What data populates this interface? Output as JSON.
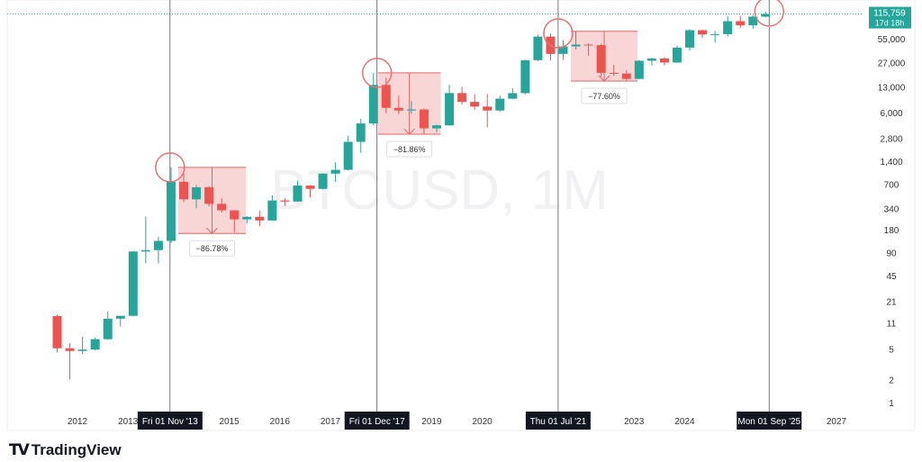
{
  "chart_data": {
    "type": "candlestick",
    "watermark": "BTCUSD, 1M",
    "y_scale": "log",
    "ylim": [
      0.85,
      140000
    ],
    "xlim": [
      2011.4,
      2027.6
    ],
    "grid": false,
    "y_ticks": [
      55000,
      27000,
      13000,
      6000,
      2800,
      1400,
      700,
      340,
      180,
      90,
      45,
      21,
      11,
      5,
      2,
      1
    ],
    "y_tick_labels": [
      "55,000",
      "27,000",
      "13,000",
      "6,000",
      "2,800",
      "1,400",
      "700",
      "340",
      "180",
      "90",
      "45",
      "21",
      "11",
      "5",
      "2",
      "1"
    ],
    "x_ticks": [
      2012,
      2013,
      2015,
      2016,
      2017,
      2019,
      2020,
      2023,
      2024,
      2027
    ],
    "x_tick_labels": [
      "2012",
      "2013",
      "2015",
      "2016",
      "2017",
      "2019",
      "2020",
      "2023",
      "2024",
      "2027"
    ],
    "last_price": {
      "value": 115759,
      "label": "115,759",
      "countdown": "17d 18h"
    },
    "colors": {
      "up": "#26a69a",
      "down": "#ef5350",
      "box": "#f7c5c5",
      "circle": "#e57373",
      "price_tag": "#26a69a"
    },
    "markers": [
      {
        "date": 2013.83,
        "label": "Fri 01 Nov '13",
        "price": 1163
      },
      {
        "date": 2017.92,
        "label": "Fri 01 Dec '17",
        "price": 19800
      },
      {
        "date": 2021.5,
        "label": "Thu 01 Jul '21",
        "price": 64900
      },
      {
        "date": 2025.67,
        "label": "Mon 01 Sep '25",
        "price": 124400
      }
    ],
    "drawdowns": [
      {
        "start": 2013.99,
        "end": 2015.33,
        "high": 1163,
        "low": 160,
        "label": "−86.78%"
      },
      {
        "start": 2017.94,
        "end": 2019.18,
        "high": 19800,
        "low": 3150,
        "label": "−81.86%"
      },
      {
        "start": 2021.75,
        "end": 2023.07,
        "high": 69000,
        "low": 15500,
        "label": "−77.60%"
      }
    ],
    "candles_columns": [
      "date",
      "open",
      "high",
      "low",
      "close"
    ],
    "candles": [
      [
        2011.6,
        13.4,
        14,
        4.5,
        5.1
      ],
      [
        2011.85,
        5.1,
        6,
        2,
        4.7
      ],
      [
        2012.1,
        4.7,
        7.2,
        4.3,
        4.9
      ],
      [
        2012.35,
        4.9,
        7,
        4.8,
        6.7
      ],
      [
        2012.6,
        6.7,
        15.4,
        6.6,
        12.4
      ],
      [
        2012.85,
        12.4,
        13.5,
        9.8,
        13.5
      ],
      [
        2013.1,
        13.5,
        95,
        13.3,
        93
      ],
      [
        2013.35,
        93,
        266,
        65,
        97
      ],
      [
        2013.6,
        97,
        145,
        65,
        128
      ],
      [
        2013.85,
        128,
        1163,
        120,
        754
      ],
      [
        2014.1,
        754,
        1000,
        410,
        445
      ],
      [
        2014.35,
        445,
        680,
        340,
        640
      ],
      [
        2014.6,
        640,
        660,
        360,
        388
      ],
      [
        2014.85,
        388,
        460,
        300,
        320
      ],
      [
        2015.1,
        320,
        320,
        166,
        244
      ],
      [
        2015.35,
        244,
        270,
        215,
        263
      ],
      [
        2015.6,
        263,
        318,
        198,
        236
      ],
      [
        2015.85,
        236,
        500,
        236,
        430
      ],
      [
        2016.1,
        430,
        460,
        365,
        416
      ],
      [
        2016.35,
        416,
        780,
        415,
        673
      ],
      [
        2016.6,
        673,
        680,
        470,
        609
      ],
      [
        2016.85,
        609,
        975,
        600,
        964
      ],
      [
        2017.1,
        964,
        1350,
        750,
        1080
      ],
      [
        2017.35,
        1080,
        3000,
        1060,
        2500
      ],
      [
        2017.6,
        2500,
        5000,
        1800,
        4340
      ],
      [
        2017.85,
        4340,
        19800,
        4100,
        13800
      ],
      [
        2018.1,
        13800,
        17200,
        5900,
        6930
      ],
      [
        2018.35,
        6930,
        9990,
        5750,
        6400
      ],
      [
        2018.6,
        6400,
        8500,
        5800,
        6600
      ],
      [
        2018.85,
        6600,
        6800,
        3150,
        3740
      ],
      [
        2019.1,
        3740,
        4200,
        3350,
        4100
      ],
      [
        2019.35,
        4100,
        13900,
        4050,
        10800
      ],
      [
        2019.6,
        10800,
        13000,
        7700,
        8300
      ],
      [
        2019.85,
        8300,
        10400,
        6500,
        7200
      ],
      [
        2020.1,
        7200,
        10500,
        3850,
        6400
      ],
      [
        2020.35,
        6400,
        10000,
        6200,
        9130
      ],
      [
        2020.6,
        9130,
        12500,
        9000,
        10780
      ],
      [
        2020.85,
        10780,
        29300,
        10400,
        29000
      ],
      [
        2021.1,
        29000,
        61800,
        28100,
        58800
      ],
      [
        2021.35,
        58800,
        64900,
        28800,
        35000
      ],
      [
        2021.6,
        35000,
        52900,
        29300,
        43800
      ],
      [
        2021.85,
        43800,
        69000,
        40000,
        46300
      ],
      [
        2022.1,
        46300,
        48200,
        32900,
        45500
      ],
      [
        2022.35,
        45500,
        47400,
        17600,
        19800
      ],
      [
        2022.6,
        19800,
        25200,
        18100,
        19400
      ],
      [
        2022.85,
        19400,
        21500,
        15500,
        16500
      ],
      [
        2023.1,
        16500,
        29200,
        16500,
        28500
      ],
      [
        2023.35,
        28500,
        31400,
        24800,
        30500
      ],
      [
        2023.6,
        30500,
        31800,
        24900,
        27000
      ],
      [
        2023.85,
        27000,
        44700,
        26900,
        42300
      ],
      [
        2024.1,
        42300,
        73800,
        38500,
        71300
      ],
      [
        2024.35,
        71300,
        72000,
        56500,
        62700
      ],
      [
        2024.6,
        62700,
        70000,
        49000,
        63300
      ],
      [
        2024.85,
        63300,
        108300,
        58900,
        93400
      ],
      [
        2025.1,
        93400,
        109600,
        76600,
        82500
      ],
      [
        2025.35,
        82500,
        112000,
        74400,
        107100
      ],
      [
        2025.6,
        107100,
        124400,
        105000,
        115759
      ]
    ]
  },
  "branding": {
    "logo_text": "TradingView"
  }
}
